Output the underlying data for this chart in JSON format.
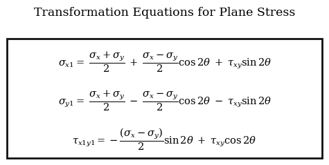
{
  "title": "Transformation Equations for Plane Stress",
  "title_fontsize": 12.5,
  "bg_color": "#ffffff",
  "box_color": "#111111",
  "text_color": "#000000",
  "eq1": "$\\sigma_{x1} = \\;\\dfrac{\\sigma_x +\\sigma_y}{2} \\;+\\; \\dfrac{\\sigma_x -\\sigma_y}{2}\\cos 2\\theta \\;+\\; \\tau_{xy}\\sin 2\\theta$",
  "eq2": "$\\sigma_{y1} = \\;\\dfrac{\\sigma_x +\\sigma_y}{2} \\;-\\; \\dfrac{\\sigma_x -\\sigma_y}{2}\\cos 2\\theta \\;-\\; \\tau_{xy}\\sin 2\\theta$",
  "eq3": "$\\tau_{x1y1} = -\\dfrac{\\left(\\sigma_x -\\sigma_y\\right)}{2}\\sin 2\\theta \\;+\\; \\tau_{xy}\\cos 2\\theta$",
  "eq_fontsize": 10.5
}
